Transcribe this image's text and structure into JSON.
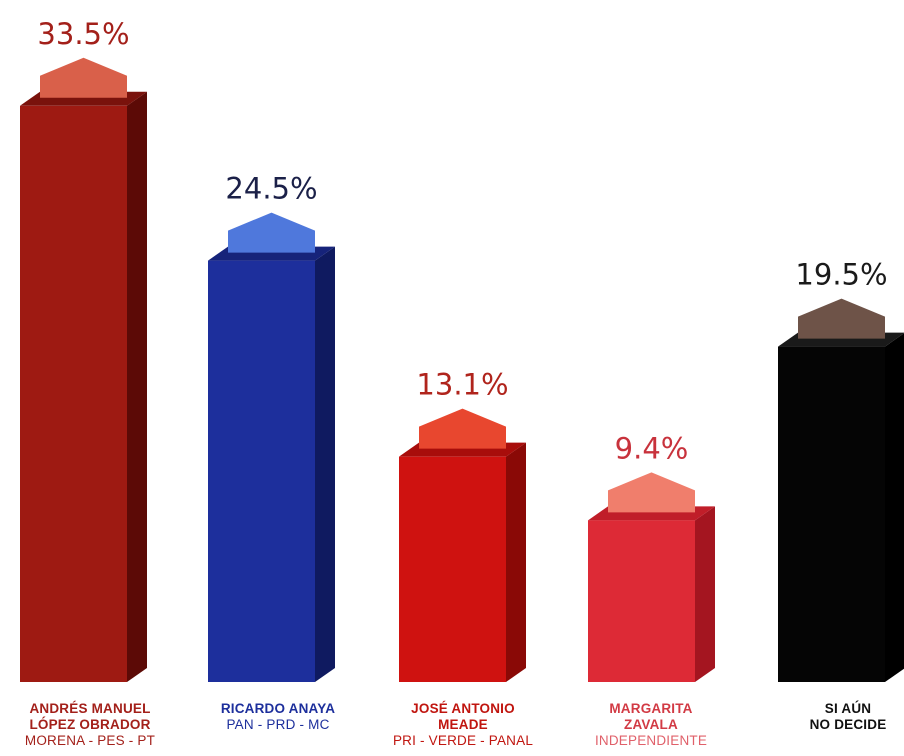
{
  "chart_data": {
    "type": "bar",
    "categories": [
      {
        "name_line1": "ANDRÉS MANUEL",
        "name_line2": "LÓPEZ OBRADOR",
        "party": "MORENA - PES - PT"
      },
      {
        "name_line1": "RICARDO ANAYA",
        "name_line2": "",
        "party": "PAN - PRD - MC"
      },
      {
        "name_line1": "JOSÉ ANTONIO",
        "name_line2": "MEADE",
        "party": "PRI - VERDE - PANAL"
      },
      {
        "name_line1": "MARGARITA",
        "name_line2": "ZAVALA",
        "party": "INDEPENDIENTE"
      },
      {
        "name_line1": "SI AÚN",
        "name_line2": "NO DECIDE",
        "party": ""
      }
    ],
    "values": [
      33.5,
      24.5,
      13.1,
      9.4,
      19.5
    ],
    "value_labels": [
      "33.5%",
      "24.5%",
      "13.1%",
      "9.4%",
      "19.5%"
    ],
    "colors": [
      {
        "front": "#9e1a12",
        "side": "#5c0a06",
        "top": "#7a120c",
        "cap": "#d9604a",
        "cap_side": "#c84e3a",
        "label": "#a3201a",
        "name": "#a3201a",
        "party": "#a3201a"
      },
      {
        "front": "#1d2f9c",
        "side": "#0f1a60",
        "top": "#16237a",
        "cap": "#4f78dc",
        "cap_side": "#3e66cc",
        "label": "#1b2048",
        "name": "#1d2f9c",
        "party": "#1d2f9c"
      },
      {
        "front": "#cf1210",
        "side": "#8a0906",
        "top": "#a80d0b",
        "cap": "#e8472f",
        "cap_side": "#d63a24",
        "label": "#b0241c",
        "name": "#c0150f",
        "party": "#c0150f"
      },
      {
        "front": "#dd2a36",
        "side": "#a41520",
        "top": "#c01e29",
        "cap": "#f07e6c",
        "cap_side": "#e66a58",
        "label": "#c8323c",
        "name": "#d23a44",
        "party": "#e0606a"
      },
      {
        "front": "#050505",
        "side": "#000000",
        "top": "#1a1a1a",
        "cap": "#6e5348",
        "cap_side": "#5d443a",
        "label": "#1a1a1a",
        "name": "#111111",
        "party": "#111111"
      }
    ],
    "ylim": [
      0,
      35
    ]
  }
}
